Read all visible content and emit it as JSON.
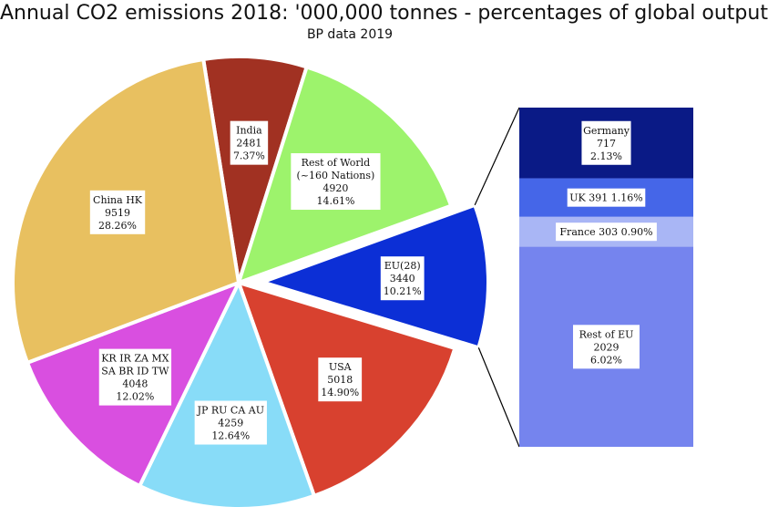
{
  "chart_data": {
    "type": "pie",
    "title": "Annual CO2 emissions 2018:  '000,000 tonnes - percentages of global output",
    "subtitle": "BP data 2019",
    "slices": [
      {
        "label": "India",
        "value": 2481,
        "percent": "7.37%",
        "color": "#a13122"
      },
      {
        "label": "Rest of World (~160 Nations)",
        "label_lines": [
          "Rest of World",
          "(~160 Nations)"
        ],
        "value": 4920,
        "percent": "14.61%",
        "color": "#9df36c"
      },
      {
        "label": "EU(28)",
        "value": 3440,
        "percent": "10.21%",
        "color": "#0c2fd6",
        "exploded": true
      },
      {
        "label": "USA",
        "value": 5018,
        "percent": "14.90%",
        "color": "#d8412f"
      },
      {
        "label": "JP RU CA AU",
        "value": 4259,
        "percent": "12.64%",
        "color": "#88dcf8"
      },
      {
        "label": "KR IR ZA MX SA BR ID TW",
        "label_lines": [
          "KR IR ZA MX",
          "SA BR ID TW"
        ],
        "value": 4048,
        "percent": "12.02%",
        "color": "#d94fe0"
      },
      {
        "label": "China HK",
        "value": 9519,
        "percent": "28.26%",
        "color": "#e8c060"
      }
    ],
    "breakdown": {
      "of": "EU(28)",
      "segments": [
        {
          "label": "Germany",
          "value": 717,
          "percent": "2.13%",
          "color": "#0a1a86"
        },
        {
          "label": "UK",
          "value": 391,
          "percent": "1.16%",
          "inline_text": "UK 391 1.16%",
          "color": "#4566e8"
        },
        {
          "label": "France",
          "value": 303,
          "percent": "0.90%",
          "inline_text": "France 303 0.90%",
          "color": "#a9b6f5"
        },
        {
          "label": "Rest of EU",
          "value": 2029,
          "percent": "6.02%",
          "color": "#7584ee"
        }
      ]
    }
  }
}
